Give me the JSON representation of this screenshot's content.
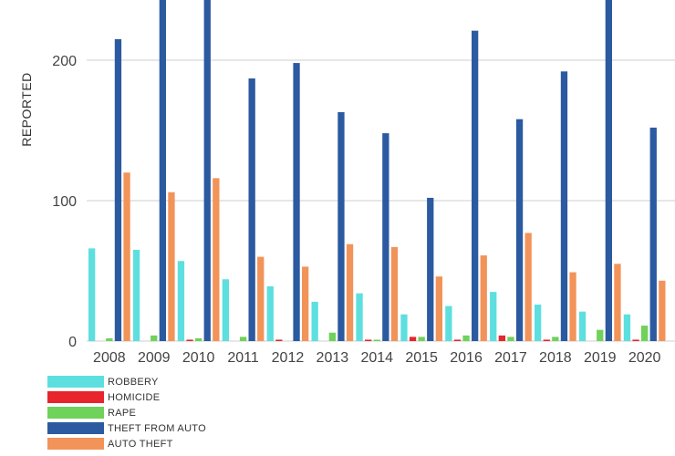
{
  "chart_data": {
    "type": "bar",
    "ylabel": "REPORTED",
    "xlabel": "",
    "categories": [
      "2008",
      "2009",
      "2010",
      "2011",
      "2012",
      "2013",
      "2014",
      "2015",
      "2016",
      "2017",
      "2018",
      "2019",
      "2020"
    ],
    "yticks": [
      0,
      100,
      200
    ],
    "ylim": [
      0,
      240
    ],
    "grid": true,
    "legend_position": "bottom-left",
    "series": [
      {
        "name": "ROBBERY",
        "color": "#5ddfe0",
        "values": [
          66,
          65,
          57,
          44,
          39,
          28,
          34,
          19,
          25,
          35,
          26,
          21,
          19
        ]
      },
      {
        "name": "HOMICIDE",
        "color": "#e8242c",
        "values": [
          0,
          0,
          1,
          0,
          1,
          0,
          1,
          3,
          1,
          4,
          1,
          0,
          1
        ]
      },
      {
        "name": "RAPE",
        "color": "#6fd25a",
        "values": [
          2,
          4,
          2,
          3,
          0,
          6,
          1,
          3,
          4,
          3,
          3,
          8,
          11
        ]
      },
      {
        "name": "THEFT FROM AUTO",
        "color": "#2b5aa0",
        "values": [
          215,
          255,
          252,
          187,
          198,
          163,
          148,
          102,
          221,
          158,
          192,
          260,
          152
        ]
      },
      {
        "name": "AUTO THEFT",
        "color": "#f2935a",
        "values": [
          120,
          106,
          116,
          60,
          53,
          69,
          67,
          46,
          61,
          77,
          49,
          55,
          43
        ]
      }
    ]
  }
}
